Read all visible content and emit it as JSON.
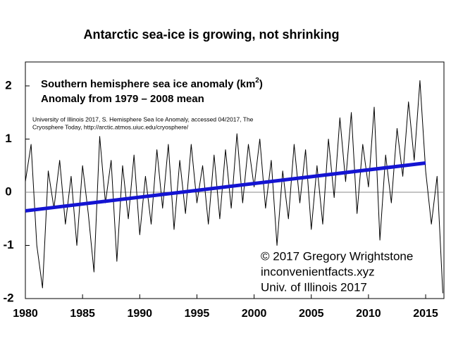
{
  "chart_data": {
    "type": "line",
    "title": "Antarctic sea-ice is growing, not shrinking",
    "subtitle_1": "Southern hemisphere sea ice anomaly (km",
    "subtitle_1_sup": "2",
    "subtitle_1_end": ")",
    "subtitle_2": "Anomaly from 1979 – 2008 mean",
    "source_1": "University of Illinois 2017, S. Hemisphere Sea Ice Anomaly, accessed 04/2017, The",
    "source_2": "Cryosphere Today, http://arctic.atmos.uiuc.edu/cryosphere/",
    "credit_1": "© 2017 Gregory Wrightstone",
    "credit_2": "inconvenientfacts.xyz",
    "credit_3": "Univ. of Illinois 2017",
    "xlim": [
      1980,
      2016.6
    ],
    "ylim": [
      -2,
      2.45
    ],
    "xticks": [
      1980,
      1985,
      1990,
      1995,
      2000,
      2005,
      2010,
      2015
    ],
    "yticks": [
      -2,
      -1,
      0,
      1,
      2
    ],
    "series": [
      {
        "color": "#000000",
        "x": [
          1980,
          1980.5,
          1981,
          1981.5,
          1982,
          1982.5,
          1983,
          1983.5,
          1984,
          1984.5,
          1985,
          1985.5,
          1986,
          1986.5,
          1987,
          1987.5,
          1988,
          1988.5,
          1989,
          1989.5,
          1990,
          1990.5,
          1991,
          1991.5,
          1992,
          1992.5,
          1993,
          1993.5,
          1994,
          1994.5,
          1995,
          1995.5,
          1996,
          1996.5,
          1997,
          1997.5,
          1998,
          1998.5,
          1999,
          1999.5,
          2000,
          2000.5,
          2001,
          2001.5,
          2002,
          2002.5,
          2003,
          2003.5,
          2004,
          2004.5,
          2005,
          2005.5,
          2006,
          2006.5,
          2007,
          2007.5,
          2008,
          2008.5,
          2009,
          2009.5,
          2010,
          2010.5,
          2011,
          2011.5,
          2012,
          2012.5,
          2013,
          2013.5,
          2014,
          2014.5,
          2015,
          2015.5,
          2016,
          2016.5
        ],
        "values": [
          0.2,
          0.9,
          -1.0,
          -1.8,
          0.4,
          -0.3,
          0.6,
          -0.6,
          0.3,
          -1.0,
          0.5,
          -0.4,
          -1.5,
          1.05,
          -0.2,
          0.6,
          -1.3,
          0.5,
          -0.5,
          0.7,
          -0.8,
          0.3,
          -0.6,
          0.8,
          -0.3,
          0.9,
          -0.7,
          0.6,
          -0.4,
          0.9,
          -0.2,
          0.5,
          -0.6,
          0.7,
          -0.5,
          0.8,
          -0.3,
          1.1,
          -0.2,
          0.9,
          0.1,
          1.0,
          -0.3,
          0.6,
          -1.0,
          0.4,
          -0.5,
          0.9,
          -0.2,
          0.8,
          -0.7,
          0.5,
          -0.6,
          1.0,
          -0.1,
          1.4,
          0.2,
          1.5,
          -0.4,
          0.9,
          0.1,
          1.6,
          -0.9,
          0.7,
          -0.2,
          1.2,
          0.3,
          1.7,
          0.6,
          2.1,
          0.4,
          -0.6,
          0.3,
          -1.9
        ]
      },
      {
        "color": "#1414d2",
        "x": [
          1980,
          2015
        ],
        "values": [
          -0.35,
          0.55
        ]
      }
    ]
  }
}
